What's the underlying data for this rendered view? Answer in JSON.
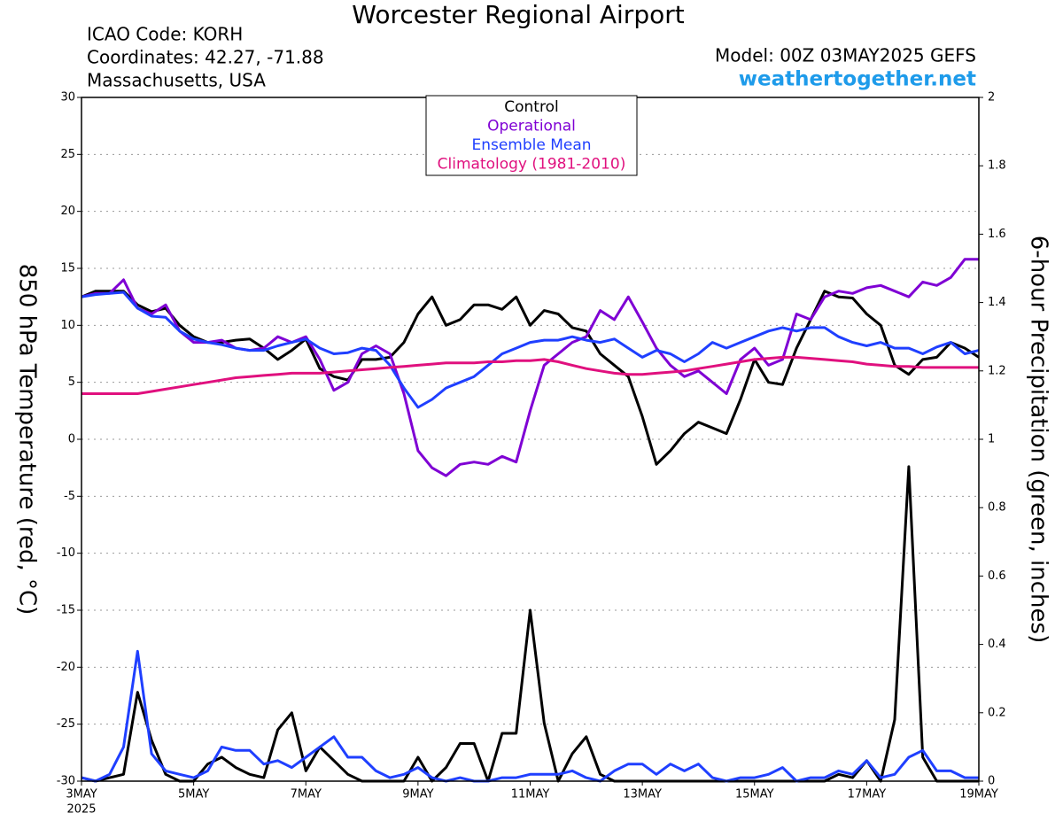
{
  "chart_data": {
    "type": "line",
    "title": "Worcester Regional Airport",
    "station_lines": [
      "ICAO Code: KORH",
      "Coordinates: 42.27, -71.88",
      "Massachusetts, USA"
    ],
    "model": "Model: 00Z 03MAY2025 GEFS",
    "source": "weathertogether.net",
    "y_label": "850 hPa Temperature (red, °C)",
    "y2_label": "6-hour Precipitation (green, inches)",
    "x": [
      0,
      0.25,
      0.5,
      0.75,
      1,
      1.25,
      1.5,
      1.75,
      2,
      2.25,
      2.5,
      2.75,
      3,
      3.25,
      3.5,
      3.75,
      4,
      4.25,
      4.5,
      4.75,
      5,
      5.25,
      5.5,
      5.75,
      6,
      6.25,
      6.5,
      6.75,
      7,
      7.25,
      7.5,
      7.75,
      8,
      8.25,
      8.5,
      8.75,
      9,
      9.25,
      9.5,
      9.75,
      10,
      10.25,
      10.5,
      10.75,
      11,
      11.25,
      11.5,
      11.75,
      12,
      12.25,
      12.5,
      12.75,
      13,
      13.25,
      13.5,
      13.75,
      14,
      14.25,
      14.5,
      14.75,
      15,
      15.25,
      15.5,
      15.75,
      16
    ],
    "xlim": [
      0,
      16
    ],
    "xticks": [
      {
        "value": 0,
        "label": "3MAY"
      },
      {
        "value": 2,
        "label": "5MAY"
      },
      {
        "value": 4,
        "label": "7MAY"
      },
      {
        "value": 6,
        "label": "9MAY"
      },
      {
        "value": 8,
        "label": "11MAY"
      },
      {
        "value": 10,
        "label": "13MAY"
      },
      {
        "value": 12,
        "label": "15MAY"
      },
      {
        "value": 14,
        "label": "17MAY"
      },
      {
        "value": 16,
        "label": "19MAY"
      }
    ],
    "xtick_sublabel": "2025",
    "ylim": [
      -30,
      30
    ],
    "yticks": [
      -30,
      -25,
      -20,
      -15,
      -10,
      -5,
      0,
      5,
      10,
      15,
      20,
      25,
      30
    ],
    "y2lim": [
      0,
      2
    ],
    "y2ticks": [
      0,
      0.2,
      0.4,
      0.6,
      0.8,
      1,
      1.2,
      1.4,
      1.6,
      1.8,
      2
    ],
    "grid": true,
    "series": [
      {
        "name": "Control",
        "color": "#000000",
        "values": [
          12.5,
          13,
          13,
          13,
          11.8,
          11.2,
          11.5,
          10,
          9,
          8.5,
          8.5,
          8.7,
          8.8,
          8,
          7,
          7.8,
          8.8,
          6.2,
          5.5,
          5.2,
          7,
          7,
          7.2,
          8.5,
          11,
          12.5,
          10,
          10.5,
          11.8,
          11.8,
          11.4,
          12.5,
          10,
          11.3,
          11,
          9.8,
          9.5,
          7.5,
          6.5,
          5.5,
          2,
          -2.2,
          -1,
          0.5,
          1.5,
          1,
          0.5,
          3.5,
          7,
          5,
          4.8,
          8,
          10.5,
          13,
          12.5,
          12.4,
          11,
          10,
          6.5,
          5.7,
          7,
          7.2,
          8.5,
          8,
          7.2
        ]
      },
      {
        "name": "Operational",
        "color": "#7f00d4",
        "values": [
          12.5,
          12.8,
          12.8,
          14,
          11.5,
          11,
          11.8,
          9.5,
          8.5,
          8.5,
          8.7,
          8,
          7.8,
          8,
          9,
          8.5,
          9,
          7,
          4.3,
          5,
          7.5,
          8.2,
          7.5,
          4,
          -1,
          -2.5,
          -3.2,
          -2.2,
          -2,
          -2.2,
          -1.5,
          -2,
          2.5,
          6.5,
          7.5,
          8.5,
          9,
          11.3,
          10.5,
          12.5,
          10.3,
          8,
          6.5,
          5.5,
          6,
          5,
          4,
          7,
          8,
          6.5,
          7,
          11,
          10.5,
          12.5,
          13,
          12.8,
          13.3,
          13.5,
          13,
          12.5,
          13.8,
          13.5,
          14.2,
          15.8,
          15.8
        ]
      },
      {
        "name": "Ensemble Mean",
        "color": "#1f3fff",
        "values": [
          12.5,
          12.7,
          12.8,
          12.9,
          11.5,
          10.8,
          10.7,
          9.5,
          8.8,
          8.5,
          8.3,
          8,
          7.8,
          7.8,
          8.2,
          8.5,
          8.8,
          8,
          7.5,
          7.6,
          8,
          7.8,
          6.5,
          4.5,
          2.8,
          3.5,
          4.5,
          5,
          5.5,
          6.5,
          7.5,
          8,
          8.5,
          8.7,
          8.7,
          9,
          8.7,
          8.5,
          8.8,
          8,
          7.2,
          7.8,
          7.5,
          6.8,
          7.5,
          8.5,
          8,
          8.5,
          9,
          9.5,
          9.8,
          9.5,
          9.8,
          9.8,
          9,
          8.5,
          8.2,
          8.5,
          8,
          8,
          7.5,
          8.1,
          8.5,
          7.5,
          7.8
        ]
      },
      {
        "name": "Climatology (1981-2010)",
        "color": "#e0107e",
        "values": [
          4,
          4,
          4,
          4,
          4,
          4.2,
          4.4,
          4.6,
          4.8,
          5,
          5.2,
          5.4,
          5.5,
          5.6,
          5.7,
          5.8,
          5.8,
          5.8,
          5.9,
          6,
          6.1,
          6.2,
          6.3,
          6.4,
          6.5,
          6.6,
          6.7,
          6.7,
          6.7,
          6.8,
          6.8,
          6.9,
          6.9,
          7,
          6.8,
          6.5,
          6.2,
          6,
          5.8,
          5.7,
          5.7,
          5.8,
          5.9,
          6,
          6.2,
          6.4,
          6.6,
          6.8,
          7,
          7.1,
          7.2,
          7.2,
          7.1,
          7,
          6.9,
          6.8,
          6.6,
          6.5,
          6.4,
          6.4,
          6.3,
          6.3,
          6.3,
          6.3,
          6.3
        ]
      },
      {
        "color": "#000000",
        "axis": "y2",
        "values": [
          0.01,
          0,
          0.01,
          0.02,
          0.26,
          0.12,
          0.02,
          0,
          0,
          0.05,
          0.07,
          0.04,
          0.02,
          0.01,
          0.15,
          0.2,
          0.03,
          0.1,
          0.06,
          0.02,
          0,
          0,
          0,
          0,
          0.07,
          0,
          0.04,
          0.11,
          0.11,
          0,
          0.14,
          0.14,
          0.5,
          0.17,
          0,
          0.08,
          0.13,
          0.02,
          0,
          0,
          0,
          0,
          0,
          0,
          0,
          0,
          0,
          0,
          0,
          0,
          0,
          0,
          0,
          0,
          0.02,
          0.01,
          0.06,
          0,
          0.18,
          0.92,
          0.07,
          0,
          0,
          0,
          0
        ]
      },
      {
        "color": "#1f3fff",
        "axis": "y2",
        "values": [
          0.01,
          0,
          0.02,
          0.1,
          0.38,
          0.08,
          0.03,
          0.02,
          0.01,
          0.03,
          0.1,
          0.09,
          0.09,
          0.05,
          0.06,
          0.04,
          0.07,
          0.1,
          0.13,
          0.07,
          0.07,
          0.03,
          0.01,
          0.02,
          0.04,
          0.01,
          0,
          0.01,
          0,
          0,
          0.01,
          0.01,
          0.02,
          0.02,
          0.02,
          0.03,
          0.01,
          0,
          0.03,
          0.05,
          0.05,
          0.02,
          0.05,
          0.03,
          0.05,
          0.01,
          0,
          0.01,
          0.01,
          0.02,
          0.04,
          0,
          0.01,
          0.01,
          0.03,
          0.02,
          0.06,
          0.01,
          0.02,
          0.07,
          0.09,
          0.03,
          0.03,
          0.01,
          0.01
        ]
      }
    ]
  }
}
